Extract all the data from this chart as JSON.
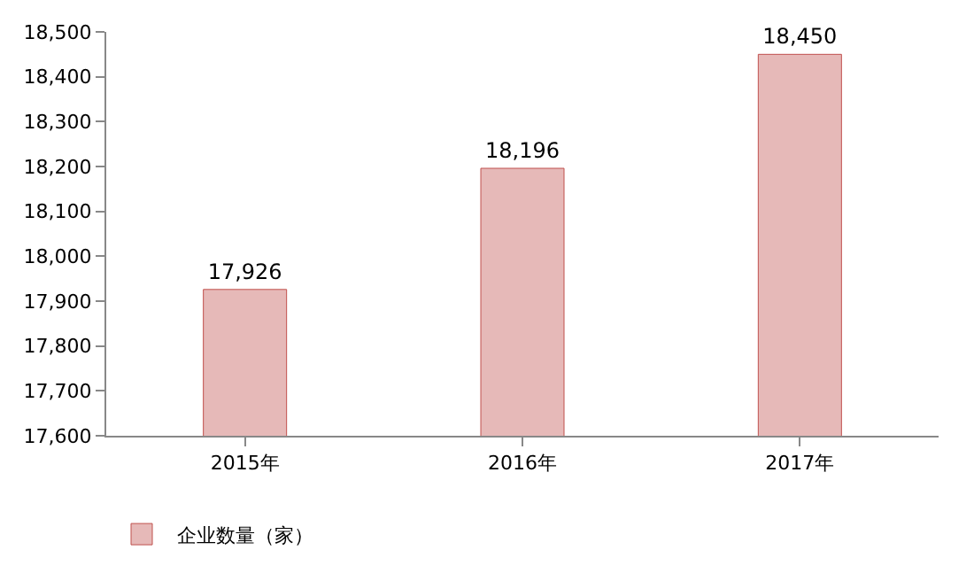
{
  "chart_data": {
    "type": "bar",
    "categories": [
      "2015年",
      "2016年",
      "2017年"
    ],
    "series": [
      {
        "name": "企业数量（家）",
        "color": "#e6b9b8",
        "values": [
          17926,
          18196,
          18450
        ],
        "value_labels": [
          "17,926",
          "18,196",
          "18,450"
        ]
      }
    ],
    "ylim": [
      17600,
      18500
    ],
    "yticks": [
      {
        "value": 17600,
        "label": "17,600"
      },
      {
        "value": 17700,
        "label": "17,700"
      },
      {
        "value": 17800,
        "label": "17,800"
      },
      {
        "value": 17900,
        "label": "17,900"
      },
      {
        "value": 18000,
        "label": "18,000"
      },
      {
        "value": 18100,
        "label": "18,100"
      },
      {
        "value": 18200,
        "label": "18,200"
      },
      {
        "value": 18300,
        "label": "18,300"
      },
      {
        "value": 18400,
        "label": "18,400"
      },
      {
        "value": 18500,
        "label": "18,500"
      }
    ],
    "legend": "bottom left"
  }
}
